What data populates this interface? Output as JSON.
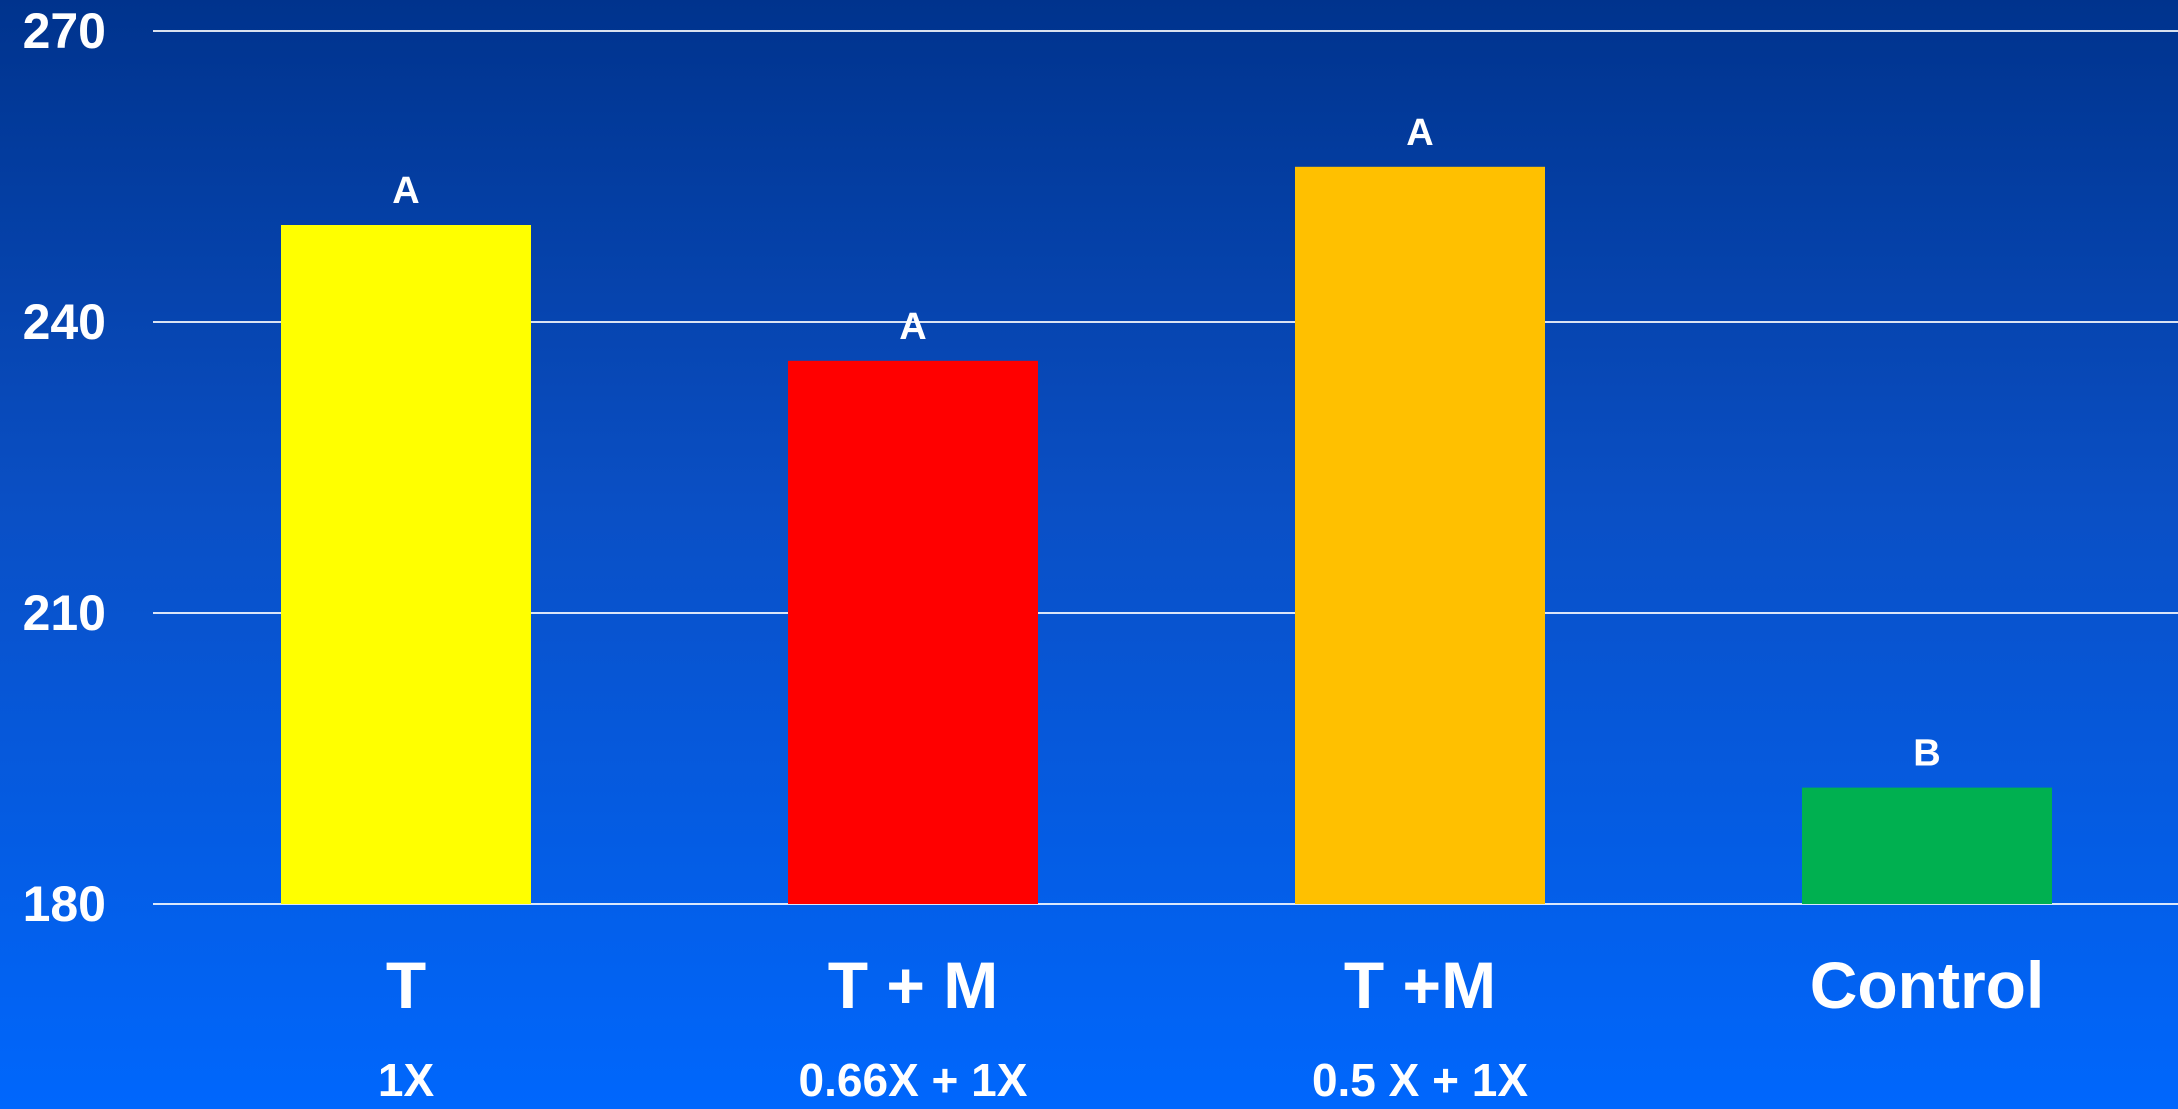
{
  "chart_data": {
    "type": "bar",
    "title": "",
    "xlabel": "",
    "ylabel": "",
    "ylim": [
      180,
      270
    ],
    "yticks": [
      180,
      210,
      240,
      270
    ],
    "grid": true,
    "categories": [
      "T",
      "T + M",
      "T +M",
      "Control"
    ],
    "sublabels": [
      "1X",
      "0.66X + 1X",
      "0.5 X + 1X",
      ""
    ],
    "values": [
      250,
      236,
      256,
      192
    ],
    "data_labels": [
      "A",
      "A",
      "A",
      "B"
    ],
    "colors": [
      "#ffff00",
      "#ff0000",
      "#ffc000",
      "#00b050"
    ]
  }
}
